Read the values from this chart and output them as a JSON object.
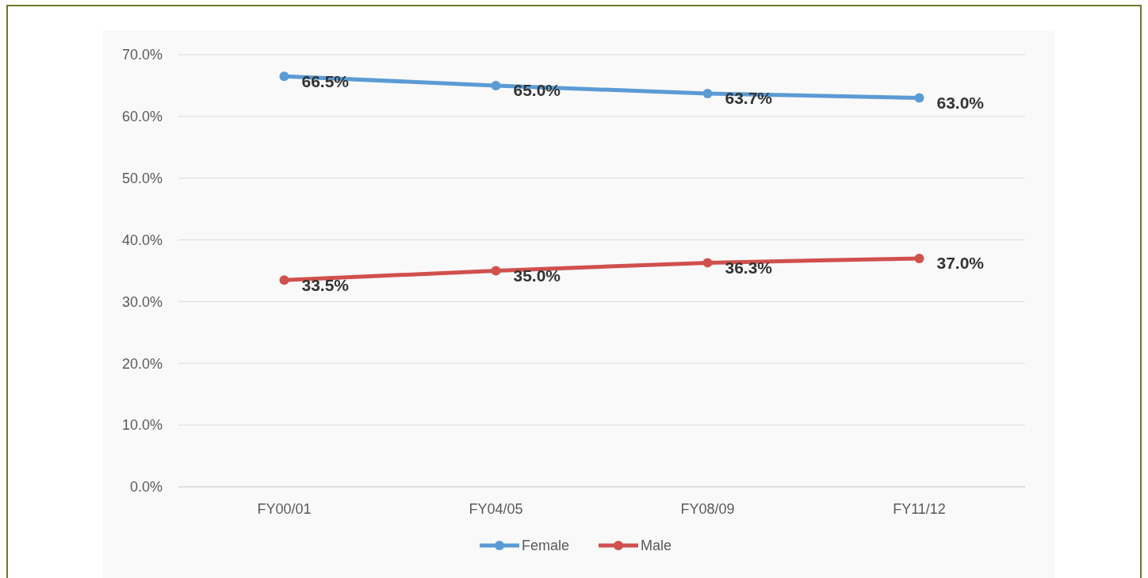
{
  "chart_data": {
    "type": "line",
    "categories": [
      "FY00/01",
      "FY04/05",
      "FY08/09",
      "FY11/12"
    ],
    "series": [
      {
        "name": "Female",
        "color": "#5b9bd5",
        "values": [
          66.5,
          65.0,
          63.7,
          63.0
        ],
        "value_labels": [
          "66.5%",
          "65.0%",
          "63.7%",
          "63.0%"
        ]
      },
      {
        "name": "Male",
        "color": "#d0504d",
        "values": [
          33.5,
          35.0,
          36.3,
          37.0
        ],
        "value_labels": [
          "33.5%",
          "35.0%",
          "36.3%",
          "37.0%"
        ]
      }
    ],
    "ylim": [
      0,
      70
    ],
    "yticks": [
      {
        "value": 0,
        "label": "0.0%"
      },
      {
        "value": 10,
        "label": "10.0%"
      },
      {
        "value": 20,
        "label": "20.0%"
      },
      {
        "value": 30,
        "label": "30.0%"
      },
      {
        "value": 40,
        "label": "40.0%"
      },
      {
        "value": 50,
        "label": "50.0%"
      },
      {
        "value": 60,
        "label": "60.0%"
      },
      {
        "value": 70,
        "label": "70.0%"
      }
    ],
    "grid": "y",
    "legend": "bottom",
    "marker": "circle",
    "line_style": "solid"
  }
}
